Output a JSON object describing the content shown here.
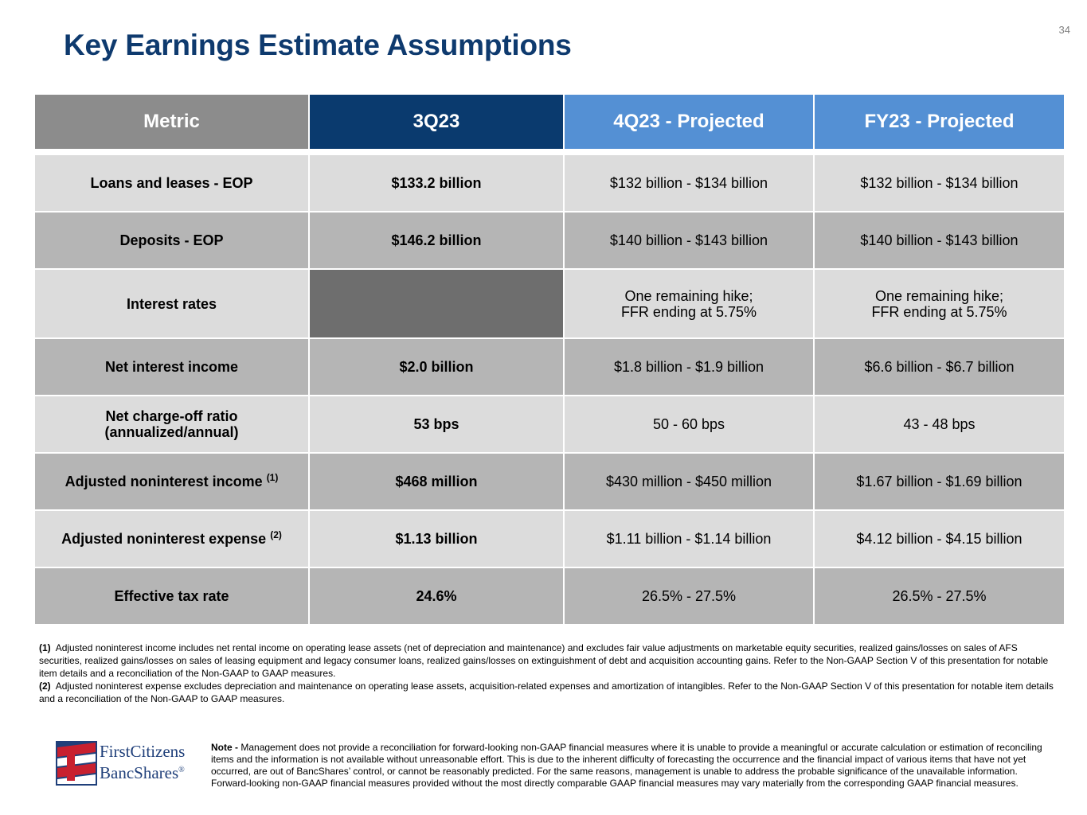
{
  "page": {
    "number": "34",
    "title": "Key Earnings Estimate Assumptions"
  },
  "table": {
    "headers": [
      "Metric",
      "3Q23",
      "4Q23 - Projected",
      "FY23 - Projected"
    ],
    "rows": [
      {
        "metric": "Loans and leases - EOP",
        "sup": "",
        "q3": "$133.2 billion",
        "q4_line1": "$132 billion - $134 billion",
        "q4_line2": "",
        "fy_line1": "$132 billion - $134 billion",
        "fy_line2": ""
      },
      {
        "metric": "Deposits - EOP",
        "sup": "",
        "q3": "$146.2 billion",
        "q4_line1": "$140 billion - $143 billion",
        "q4_line2": "",
        "fy_line1": "$140 billion - $143 billion",
        "fy_line2": ""
      },
      {
        "metric": "Interest rates",
        "sup": "",
        "q3": "",
        "q4_line1": "One remaining hike;",
        "q4_line2": "FFR ending at 5.75%",
        "fy_line1": "One remaining hike;",
        "fy_line2": "FFR ending at 5.75%"
      },
      {
        "metric": "Net interest income",
        "sup": "",
        "q3": "$2.0 billion",
        "q4_line1": "$1.8 billion - $1.9 billion",
        "q4_line2": "",
        "fy_line1": "$6.6 billion - $6.7 billion",
        "fy_line2": ""
      },
      {
        "metric_line1": "Net charge-off ratio",
        "metric_line2": "(annualized/annual)",
        "sup": "",
        "q3": "53 bps",
        "q4_line1": "50 - 60 bps",
        "q4_line2": "",
        "fy_line1": "43 - 48 bps",
        "fy_line2": ""
      },
      {
        "metric": "Adjusted noninterest income",
        "sup": "(1)",
        "q3": "$468 million",
        "q4_line1": "$430 million - $450 million",
        "q4_line2": "",
        "fy_line1": "$1.67 billion - $1.69 billion",
        "fy_line2": ""
      },
      {
        "metric": "Adjusted noninterest expense",
        "sup": "(2)",
        "q3": "$1.13 billion",
        "q4_line1": "$1.11 billion - $1.14 billion",
        "q4_line2": "",
        "fy_line1": "$4.12 billion - $4.15 billion",
        "fy_line2": ""
      },
      {
        "metric": "Effective tax rate",
        "sup": "",
        "q3": "24.6%",
        "q4_line1": "26.5% - 27.5%",
        "q4_line2": "",
        "fy_line1": "26.5% - 27.5%",
        "fy_line2": ""
      }
    ]
  },
  "footnotes": [
    {
      "num": "(1)",
      "text": "Adjusted noninterest income includes net rental income on operating lease assets (net of depreciation and maintenance) and excludes fair value adjustments on marketable equity securities, realized gains/losses on sales of AFS securities, realized gains/losses on sales of leasing equipment and legacy consumer loans, realized gains/losses on extinguishment of debt and acquisition accounting gains. Refer to the Non-GAAP Section V of this presentation for notable item details and a reconciliation of the Non-GAAP to GAAP measures."
    },
    {
      "num": "(2)",
      "text": "Adjusted noninterest expense excludes depreciation and maintenance on operating lease assets, acquisition-related expenses and amortization of intangibles. Refer to the Non-GAAP Section V of this presentation for notable item details and a reconciliation of the Non-GAAP to GAAP measures."
    }
  ],
  "logo": {
    "line1": "FirstCitizens",
    "line2": "BancShares",
    "mark": "®",
    "colors": {
      "red": "#c8202f",
      "blue": "#1f3f7a"
    }
  },
  "note": {
    "label": "Note -",
    "text": "Management does not provide a reconciliation for forward-looking non-GAAP financial measures where it is unable to provide a meaningful or accurate calculation or estimation of reconciling items and the information is not available without unreasonable effort. This is due to the inherent difficulty of forecasting the occurrence and the financial impact of various items that have not yet occurred, are out of BancShares’ control, or cannot be reasonably predicted.  For the same reasons, management is unable to address the probable significance of the unavailable information.  Forward-looking non-GAAP financial measures provided without the most directly comparable GAAP financial measures may vary materially from the corresponding GAAP financial measures."
  }
}
